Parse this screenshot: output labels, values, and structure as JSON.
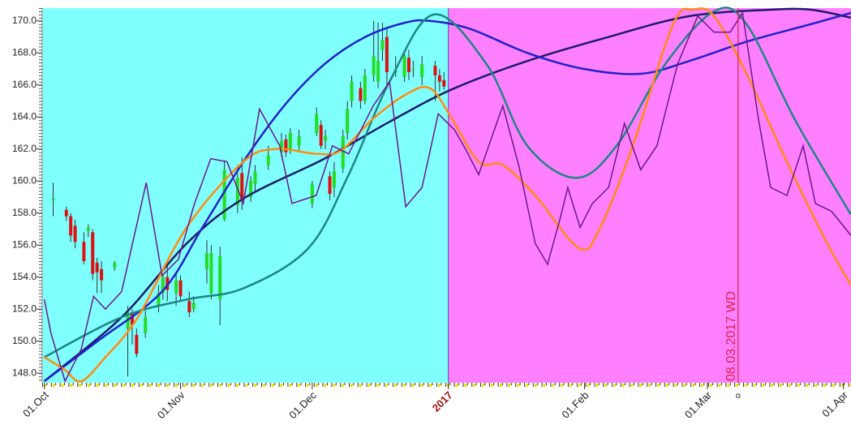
{
  "chart_data": {
    "type": "candlestick",
    "xlim": [
      -0.5,
      183.7
    ],
    "ylim": [
      147.4,
      170.8
    ],
    "yticks": [
      {
        "value": 148,
        "label": "148.0"
      },
      {
        "value": 150,
        "label": "150.0"
      },
      {
        "value": 152,
        "label": "152.0"
      },
      {
        "value": 154,
        "label": "154.0"
      },
      {
        "value": 156,
        "label": "156.0"
      },
      {
        "value": 158,
        "label": "158.0"
      },
      {
        "value": 160,
        "label": "160.0"
      },
      {
        "value": 162,
        "label": "162.0"
      },
      {
        "value": 164,
        "label": "164.0"
      },
      {
        "value": 166,
        "label": "166.0"
      },
      {
        "value": 168,
        "label": "168.0"
      },
      {
        "value": 170,
        "label": "170.0"
      }
    ],
    "xticks": [
      {
        "value": 0,
        "label": "01.Oct"
      },
      {
        "value": 31,
        "label": "01.Nov"
      },
      {
        "value": 61,
        "label": "01.Dec"
      },
      {
        "value": 92,
        "label": "2017",
        "color": "#a01010"
      },
      {
        "value": 123,
        "label": "01.Feb"
      },
      {
        "value": 151,
        "label": "01.Mar"
      },
      {
        "value": 182,
        "label": "01.Apr"
      }
    ],
    "regions": [
      {
        "from": -0.5,
        "to": 92,
        "color": "#80ffff"
      },
      {
        "from": 92,
        "to": 183.7,
        "color": "#ff80ff"
      }
    ],
    "up_color": "#22dd22",
    "down_color": "#dd1111",
    "x": [
      2,
      5,
      6,
      7,
      9,
      10,
      11,
      12,
      13,
      16,
      19,
      20,
      21,
      23,
      26,
      27,
      28,
      30,
      31,
      33,
      34,
      37,
      38,
      40,
      41,
      44,
      45,
      47,
      48,
      51,
      54,
      55,
      56,
      58,
      61,
      62,
      63,
      64,
      65,
      66,
      68,
      69,
      70,
      72,
      73,
      75,
      76,
      77,
      78,
      80,
      82,
      83,
      84,
      86,
      89,
      90,
      91
    ],
    "open": [
      158.8,
      158.2,
      157.8,
      157.2,
      156.2,
      156.9,
      156.8,
      154.9,
      154.5,
      154.6,
      150.8,
      151.8,
      150.4,
      150.5,
      152.2,
      153.0,
      154.0,
      153.0,
      153.8,
      152.5,
      152.0,
      154.5,
      153.0,
      152.6,
      157.6,
      158.5,
      160.5,
      159.0,
      159.8,
      161.0,
      161.8,
      162.6,
      162.0,
      162.2,
      158.6,
      163.0,
      163.5,
      162.5,
      160.3,
      159.6,
      160.8,
      163.0,
      165.0,
      165.8,
      165.0,
      166.6,
      166.2,
      168.2,
      169.0,
      166.8,
      166.5,
      167.7,
      167.0,
      166.5,
      167.2,
      166.6,
      166.3
    ],
    "high": [
      159.9,
      158.4,
      158.0,
      157.6,
      156.8,
      157.3,
      157.0,
      155.2,
      155.0,
      155.0,
      152.2,
      152.0,
      150.8,
      151.9,
      153.5,
      154.2,
      154.8,
      154.2,
      154.1,
      153.1,
      152.8,
      156.3,
      156.0,
      155.9,
      161.3,
      161.0,
      161.5,
      160.3,
      161.0,
      162.2,
      163.0,
      162.9,
      163.3,
      163.2,
      160.0,
      164.6,
      163.8,
      163.2,
      160.6,
      161.2,
      163.2,
      165.0,
      166.6,
      166.2,
      167.0,
      170.0,
      169.9,
      169.9,
      169.5,
      167.8,
      168.0,
      168.2,
      167.5,
      167.8,
      167.5,
      167.0,
      166.8
    ],
    "low": [
      157.8,
      157.5,
      156.2,
      155.8,
      154.8,
      156.5,
      153.8,
      153.0,
      153.0,
      154.4,
      147.8,
      149.8,
      149.0,
      150.2,
      151.8,
      152.6,
      152.5,
      152.2,
      152.5,
      151.5,
      151.8,
      153.6,
      152.6,
      151.0,
      157.5,
      158.0,
      158.2,
      158.7,
      159.4,
      160.7,
      161.5,
      161.5,
      161.7,
      161.8,
      158.3,
      162.8,
      162.0,
      162.0,
      158.8,
      159.0,
      160.5,
      162.6,
      164.6,
      164.5,
      164.8,
      166.2,
      165.8,
      167.5,
      166.0,
      166.5,
      166.2,
      166.3,
      166.5,
      166.0,
      165.0,
      165.6,
      165.7
    ],
    "close": [
      158.9,
      157.8,
      156.6,
      156.2,
      155.0,
      157.1,
      154.2,
      154.3,
      153.8,
      154.9,
      151.8,
      151.0,
      149.2,
      151.5,
      153.0,
      154.0,
      153.2,
      153.8,
      152.8,
      151.8,
      152.4,
      155.5,
      155.5,
      155.3,
      160.7,
      160.2,
      158.8,
      160.0,
      160.6,
      161.6,
      162.5,
      161.8,
      163.0,
      162.8,
      159.8,
      164.2,
      162.2,
      162.8,
      159.2,
      160.6,
      162.8,
      164.5,
      166.2,
      165.0,
      166.6,
      167.8,
      167.5,
      168.8,
      166.8,
      166.9,
      167.8,
      166.8,
      167.0,
      167.3,
      166.6,
      166.2,
      165.9
    ],
    "series": [
      {
        "color": "#1c1c6a",
        "x": [
          0,
          17.6,
          32.4,
          45.3,
          63.8,
          78.6,
          92.6,
          110,
          128.5,
          146.9,
          165.4,
          174.6,
          183.7
        ],
        "values": [
          147.5,
          151.5,
          156.1,
          158.9,
          161.4,
          163.7,
          165.7,
          167.5,
          169.0,
          170.3,
          170.7,
          170.7,
          170.2
        ]
      },
      {
        "color": "#2222cc",
        "x": [
          0,
          12.1,
          26.8,
          36,
          45.3,
          54.6,
          63.8,
          73.1,
          82.3,
          87.8,
          97,
          110,
          122.9,
          135.8,
          146.9,
          159.9,
          174.6,
          183.7
        ],
        "values": [
          147.5,
          150.0,
          153.1,
          157.1,
          161.2,
          164.7,
          167.3,
          169.0,
          169.9,
          170.0,
          169.5,
          168.0,
          167.0,
          166.7,
          167.5,
          168.7,
          169.8,
          170.5
        ]
      },
      {
        "color": "#1f8585",
        "x": [
          0,
          17.6,
          32.4,
          45.3,
          60.1,
          69.3,
          78.6,
          88.7,
          100.7,
          110,
          121.1,
          130.3,
          141.4,
          152.5,
          159.9,
          171,
          183.7
        ],
        "values": [
          149.0,
          151.5,
          152.6,
          153.3,
          155.8,
          160.4,
          166.2,
          170.4,
          167.3,
          162.2,
          160.2,
          162.2,
          167.3,
          170.6,
          169.8,
          163.8,
          157.9
        ]
      },
      {
        "color": "#ff8c10",
        "x": [
          0,
          4.7,
          8.4,
          13.9,
          21.3,
          32.4,
          45.3,
          52.7,
          61.9,
          67.5,
          74.9,
          82.3,
          87.8,
          92.6,
          98.9,
          104.4,
          111.8,
          121.8,
          126.6,
          134,
          143.2,
          147.8,
          152.5,
          159.9,
          169.1,
          178.3,
          183.7
        ],
        "values": [
          149.0,
          148.2,
          147.5,
          149.0,
          151.5,
          157.1,
          161.2,
          162.0,
          161.7,
          161.9,
          163.9,
          165.4,
          165.8,
          164.0,
          161.2,
          161.0,
          159.1,
          155.8,
          157.1,
          162.2,
          169.8,
          170.7,
          170.3,
          166.7,
          161.2,
          156.1,
          153.5
        ]
      },
      {
        "color": "#6a1a8a",
        "x": [
          0,
          1.5,
          4.7,
          8.4,
          11.2,
          13.9,
          17.6,
          23.2,
          26.8,
          30.5,
          34.2,
          37.9,
          41.6,
          45.3,
          49,
          53.6,
          56.4,
          61.9,
          65.6,
          69.3,
          74.9,
          78.6,
          82.3,
          86,
          89.7,
          93.4,
          96.1,
          98.9,
          104.4,
          108.1,
          111.8,
          114.6,
          117.4,
          119.2,
          122,
          124.8,
          128.5,
          132.1,
          135.8,
          139.5,
          144.2,
          148.8,
          152.5,
          156.2,
          159,
          162.6,
          165.4,
          169.1,
          172.8,
          175.6,
          179.3,
          183.7
        ],
        "values": [
          152.6,
          150.5,
          147.5,
          149.5,
          152.8,
          152.0,
          153.1,
          159.9,
          154.1,
          155.1,
          158.6,
          161.4,
          161.2,
          158.6,
          164.5,
          162.2,
          158.6,
          159.1,
          162.2,
          161.7,
          164.7,
          166.2,
          158.4,
          159.6,
          164.2,
          163.2,
          161.9,
          160.4,
          164.7,
          160.9,
          156.1,
          154.8,
          157.6,
          159.6,
          157.1,
          158.6,
          159.6,
          163.6,
          160.7,
          162.2,
          167.3,
          170.3,
          169.3,
          169.3,
          170.5,
          163.9,
          159.6,
          159.1,
          162.2,
          158.6,
          158.1,
          156.6
        ]
      }
    ],
    "markers": [
      {
        "x": 158,
        "label": "08.03.2017 WD",
        "color": "#e0204a"
      }
    ]
  }
}
